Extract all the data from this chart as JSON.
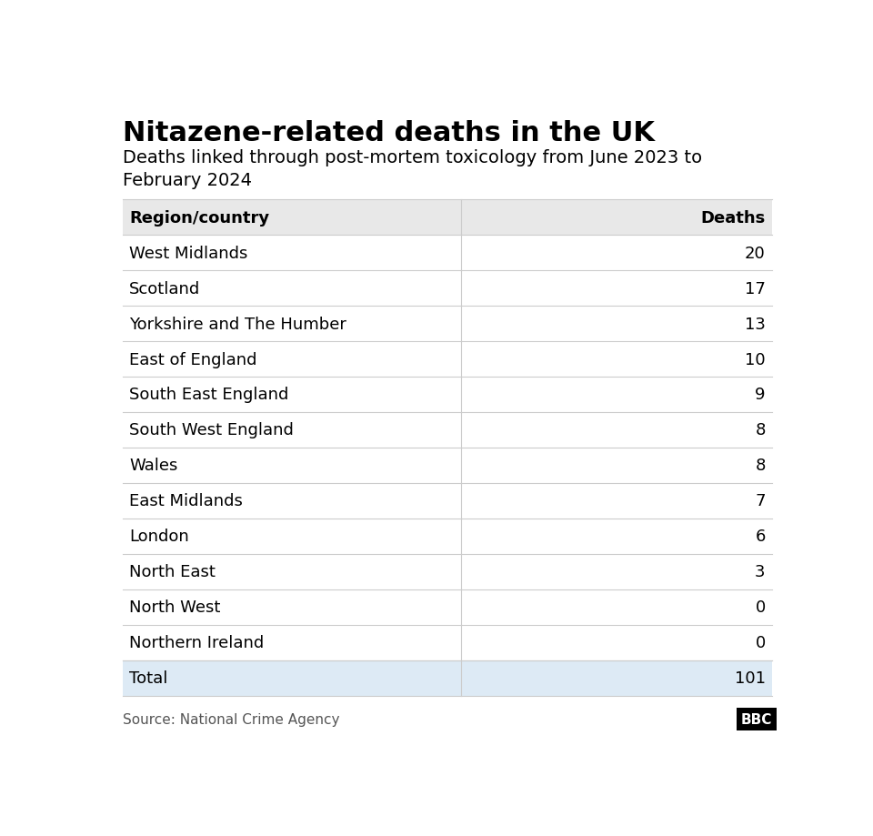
{
  "title": "Nitazene-related deaths in the UK",
  "subtitle": "Deaths linked through post-mortem toxicology from June 2023 to\nFebruary 2024",
  "col1_header": "Region/country",
  "col2_header": "Deaths",
  "rows": [
    [
      "West Midlands",
      "20"
    ],
    [
      "Scotland",
      "17"
    ],
    [
      "Yorkshire and The Humber",
      "13"
    ],
    [
      "East of England",
      "10"
    ],
    [
      "South East England",
      "9"
    ],
    [
      "South West England",
      "8"
    ],
    [
      "Wales",
      "8"
    ],
    [
      "East Midlands",
      "7"
    ],
    [
      "London",
      "6"
    ],
    [
      "North East",
      "3"
    ],
    [
      "North West",
      "0"
    ],
    [
      "Northern Ireland",
      "0"
    ]
  ],
  "total_label": "Total",
  "total_value": "101",
  "source_text": "Source: National Crime Agency",
  "bbc_text": "BBC",
  "header_bg": "#e8e8e8",
  "total_bg": "#ddeaf5",
  "row_bg": "#ffffff",
  "divider_color": "#cccccc",
  "text_color": "#000000",
  "source_color": "#555555",
  "title_fontsize": 22,
  "subtitle_fontsize": 14,
  "header_fontsize": 13,
  "row_fontsize": 13,
  "source_fontsize": 11,
  "col_split": 0.52
}
